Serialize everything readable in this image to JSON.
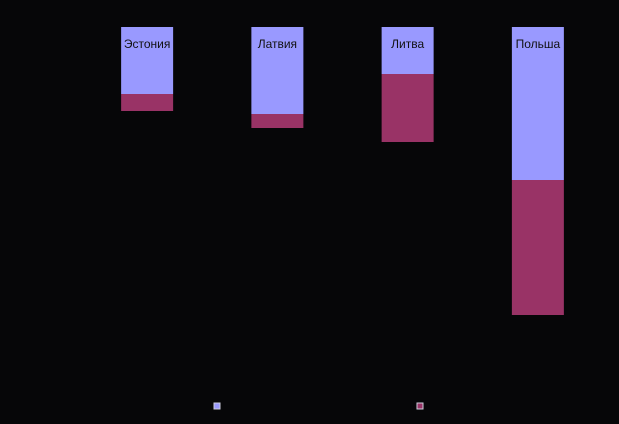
{
  "chart_data": {
    "type": "bar",
    "stacked": true,
    "y_inverted": true,
    "categories": [
      "Эстония",
      "Латвия",
      "Литва",
      "Польша"
    ],
    "series": [
      {
        "color": "#9999ff",
        "values": [
          67,
          87,
          47,
          153
        ]
      },
      {
        "color": "#993366",
        "values": [
          17,
          14,
          68,
          135
        ]
      }
    ],
    "ylim": [
      0,
      300
    ]
  }
}
